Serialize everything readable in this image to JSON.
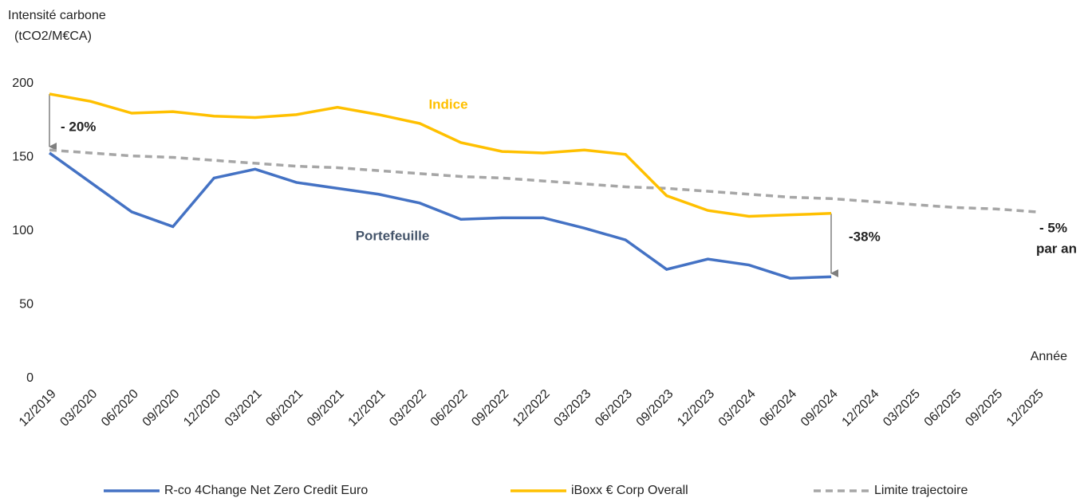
{
  "chart_data": {
    "type": "line",
    "y_label": [
      "Intensité carbone",
      "(tCO2/M€CA)"
    ],
    "x_label": "Année",
    "categories": [
      "12/2019",
      "03/2020",
      "06/2020",
      "09/2020",
      "12/2020",
      "03/2021",
      "06/2021",
      "09/2021",
      "12/2021",
      "03/2022",
      "06/2022",
      "09/2022",
      "12/2022",
      "03/2023",
      "06/2023",
      "09/2023",
      "12/2023",
      "03/2024",
      "06/2024",
      "09/2024",
      "12/2024",
      "03/2025",
      "06/2025",
      "09/2025",
      "12/2025"
    ],
    "series": [
      {
        "name": "R-co 4Change Net Zero Credit Euro",
        "color": "#4472c4",
        "dash": false,
        "values": [
          153,
          133,
          113,
          103,
          136,
          142,
          133,
          129,
          125,
          119,
          108,
          109,
          109,
          102,
          94,
          74,
          81,
          77,
          68,
          69,
          null,
          null,
          null,
          null,
          null
        ]
      },
      {
        "name": "iBoxx € Corp Overall",
        "color": "#ffc000",
        "dash": false,
        "values": [
          193,
          188,
          180,
          181,
          178,
          177,
          179,
          184,
          179,
          173,
          160,
          154,
          153,
          155,
          152,
          124,
          114,
          110,
          111,
          112,
          null,
          null,
          null,
          null,
          null
        ]
      },
      {
        "name": "Limite trajectoire",
        "color": "#a6a6a6",
        "dash": true,
        "values": [
          155,
          153,
          151,
          150,
          148,
          146,
          144,
          143,
          141,
          139,
          137,
          136,
          134,
          132,
          130,
          129,
          127,
          125,
          123,
          122,
          120,
          118,
          116,
          115,
          113
        ]
      }
    ],
    "ylim": [
      0,
      200
    ],
    "yticks": [
      0,
      50,
      100,
      150,
      200
    ],
    "annotations": [
      {
        "text": "Indice",
        "color": "#ffc000"
      },
      {
        "text": "Portefeuille",
        "color": "#44546a"
      },
      {
        "text": "- 20%",
        "color": "#222222"
      },
      {
        "text": "-38%",
        "color": "#222222"
      },
      {
        "text": "- 5%",
        "color": "#222222"
      },
      {
        "text": "par an",
        "color": "#222222"
      }
    ]
  }
}
